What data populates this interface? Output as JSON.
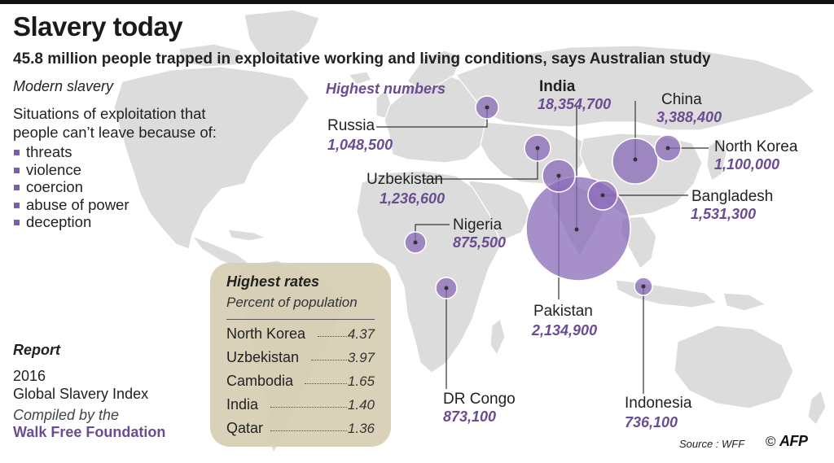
{
  "title": "Slavery today",
  "subtitle": "45.8 million people trapped in exploitative working and living conditions, says Australian study",
  "modern_slavery": {
    "heading": "Modern slavery",
    "description": "Situations of exploitation that people can’t leave because of:",
    "reasons": [
      "threats",
      "violence",
      "coercion",
      "abuse of power",
      "deception"
    ]
  },
  "highest_numbers": {
    "heading": "Highest numbers",
    "countries": [
      {
        "name": "India",
        "value": "18,354,700"
      },
      {
        "name": "China",
        "value": "3,388,400"
      },
      {
        "name": "Russia",
        "value": "1,048,500"
      },
      {
        "name": "North Korea",
        "value": "1,100,000"
      },
      {
        "name": "Uzbekistan",
        "value": "1,236,600"
      },
      {
        "name": "Bangladesh",
        "value": "1,531,300"
      },
      {
        "name": "Nigeria",
        "value": "875,500"
      },
      {
        "name": "Pakistan",
        "value": "2,134,900"
      },
      {
        "name": "DR Congo",
        "value": "873,100"
      },
      {
        "name": "Indonesia",
        "value": "736,100"
      }
    ]
  },
  "highest_rates": {
    "heading": "Highest rates",
    "subheading": "Percent of population",
    "rows": [
      {
        "country": "North Korea",
        "rate": "4.37"
      },
      {
        "country": "Uzbekistan",
        "rate": "3.97"
      },
      {
        "country": "Cambodia",
        "rate": "1.65"
      },
      {
        "country": "India",
        "rate": "1.40"
      },
      {
        "country": "Qatar",
        "rate": "1.36"
      }
    ]
  },
  "report": {
    "heading": "Report",
    "year": "2016",
    "name": "Global Slavery Index",
    "compiled_by": "Compiled by the",
    "organization": "Walk Free Foundation"
  },
  "source": "Source : WFF",
  "copyright": "©",
  "agency": "AFP",
  "colors": {
    "bubble": "#8a6bb8",
    "accent": "#6a4c93",
    "land": "#dcdcdc",
    "rates_box": "#d6cdb2"
  }
}
